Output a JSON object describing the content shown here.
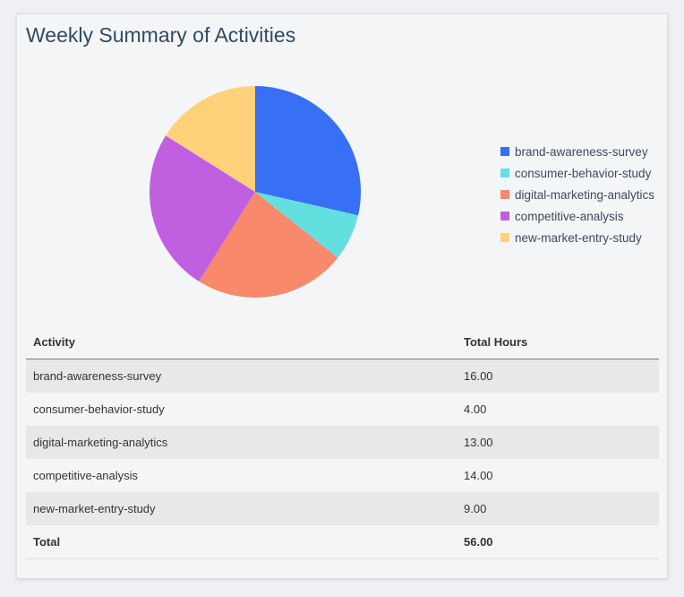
{
  "title": "Weekly Summary of Activities",
  "chart_data": {
    "type": "pie",
    "categories": [
      "brand-awareness-survey",
      "consumer-behavior-study",
      "digital-marketing-analytics",
      "competitive-analysis",
      "new-market-entry-study"
    ],
    "values": [
      16,
      4,
      13,
      14,
      9
    ],
    "colors": [
      "#376ff5",
      "#63dfe0",
      "#f9896b",
      "#c060e0",
      "#fed17a"
    ],
    "legend_position": "right",
    "direction": "clockwise from top"
  },
  "table": {
    "headers": [
      "Activity",
      "Total Hours"
    ],
    "rows": [
      [
        "brand-awareness-survey",
        "16.00"
      ],
      [
        "consumer-behavior-study",
        "4.00"
      ],
      [
        "digital-marketing-analytics",
        "13.00"
      ],
      [
        "competitive-analysis",
        "14.00"
      ],
      [
        "new-market-entry-study",
        "9.00"
      ]
    ],
    "total": [
      "Total",
      "56.00"
    ]
  }
}
